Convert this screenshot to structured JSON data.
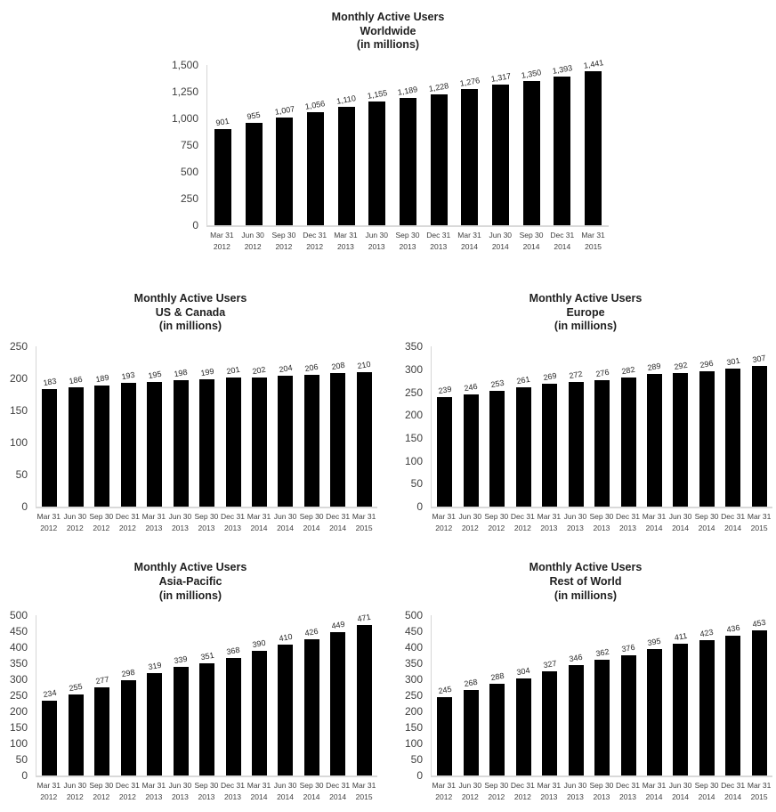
{
  "page": {
    "background": "#ffffff",
    "bar_color": "#000000",
    "axis_line_color": "#d9d9d9",
    "text_color": "#404040"
  },
  "chart_data": [
    {
      "type": "bar",
      "title": "Monthly Active Users Worldwide (in millions)",
      "title_lines": [
        "Monthly Active Users",
        "Worldwide",
        "(in millions)"
      ],
      "xlabel": "",
      "ylabel": "",
      "ylim": [
        0,
        1500
      ],
      "grid": false,
      "legend": "none",
      "y_tick_labels": [
        "0",
        "250",
        "500",
        "750",
        "1,000",
        "1,250",
        "1,500"
      ],
      "categories": [
        [
          "Mar 31",
          "2012"
        ],
        [
          "Jun 30",
          "2012"
        ],
        [
          "Sep 30",
          "2012"
        ],
        [
          "Dec 31",
          "2012"
        ],
        [
          "Mar 31",
          "2013"
        ],
        [
          "Jun 30",
          "2013"
        ],
        [
          "Sep 30",
          "2013"
        ],
        [
          "Dec 31",
          "2013"
        ],
        [
          "Mar 31",
          "2014"
        ],
        [
          "Jun 30",
          "2014"
        ],
        [
          "Sep 30",
          "2014"
        ],
        [
          "Dec 31",
          "2014"
        ],
        [
          "Mar 31",
          "2015"
        ]
      ],
      "values": [
        901,
        955,
        1007,
        1056,
        1110,
        1155,
        1189,
        1228,
        1276,
        1317,
        1350,
        1393,
        1441
      ],
      "value_labels": [
        "901",
        "955",
        "1,007",
        "1,056",
        "1,110",
        "1,155",
        "1,189",
        "1,228",
        "1,276",
        "1,317",
        "1,350",
        "1,393",
        "1,441"
      ]
    },
    {
      "type": "bar",
      "title": "Monthly Active Users US & Canada (in millions)",
      "title_lines": [
        "Monthly Active Users",
        "US & Canada",
        "(in millions)"
      ],
      "xlabel": "",
      "ylabel": "",
      "ylim": [
        0,
        250
      ],
      "grid": false,
      "legend": "none",
      "y_tick_labels": [
        "0",
        "50",
        "100",
        "150",
        "200",
        "250"
      ],
      "categories": [
        [
          "Mar 31",
          "2012"
        ],
        [
          "Jun 30",
          "2012"
        ],
        [
          "Sep 30",
          "2012"
        ],
        [
          "Dec 31",
          "2012"
        ],
        [
          "Mar 31",
          "2013"
        ],
        [
          "Jun 30",
          "2013"
        ],
        [
          "Sep 30",
          "2013"
        ],
        [
          "Dec 31",
          "2013"
        ],
        [
          "Mar 31",
          "2014"
        ],
        [
          "Jun 30",
          "2014"
        ],
        [
          "Sep 30",
          "2014"
        ],
        [
          "Dec 31",
          "2014"
        ],
        [
          "Mar 31",
          "2015"
        ]
      ],
      "values": [
        183,
        186,
        189,
        193,
        195,
        198,
        199,
        201,
        202,
        204,
        206,
        208,
        210
      ],
      "value_labels": [
        "183",
        "186",
        "189",
        "193",
        "195",
        "198",
        "199",
        "201",
        "202",
        "204",
        "206",
        "208",
        "210"
      ]
    },
    {
      "type": "bar",
      "title": "Monthly Active Users Europe (in millions)",
      "title_lines": [
        "Monthly Active Users",
        "Europe",
        "(in millions)"
      ],
      "xlabel": "",
      "ylabel": "",
      "ylim": [
        0,
        350
      ],
      "grid": false,
      "legend": "none",
      "y_tick_labels": [
        "0",
        "50",
        "100",
        "150",
        "200",
        "250",
        "300",
        "350"
      ],
      "categories": [
        [
          "Mar 31",
          "2012"
        ],
        [
          "Jun 30",
          "2012"
        ],
        [
          "Sep 30",
          "2012"
        ],
        [
          "Dec 31",
          "2012"
        ],
        [
          "Mar 31",
          "2013"
        ],
        [
          "Jun 30",
          "2013"
        ],
        [
          "Sep 30",
          "2013"
        ],
        [
          "Dec 31",
          "2013"
        ],
        [
          "Mar 31",
          "2014"
        ],
        [
          "Jun 30",
          "2014"
        ],
        [
          "Sep 30",
          "2014"
        ],
        [
          "Dec 31",
          "2014"
        ],
        [
          "Mar 31",
          "2015"
        ]
      ],
      "values": [
        239,
        246,
        253,
        261,
        269,
        272,
        276,
        282,
        289,
        292,
        296,
        301,
        307
      ],
      "value_labels": [
        "239",
        "246",
        "253",
        "261",
        "269",
        "272",
        "276",
        "282",
        "289",
        "292",
        "296",
        "301",
        "307"
      ]
    },
    {
      "type": "bar",
      "title": "Monthly Active Users Asia-Pacific (in millions)",
      "title_lines": [
        "Monthly Active Users",
        "Asia-Pacific",
        "(in millions)"
      ],
      "xlabel": "",
      "ylabel": "",
      "ylim": [
        0,
        500
      ],
      "grid": false,
      "legend": "none",
      "y_tick_labels": [
        "0",
        "50",
        "100",
        "150",
        "200",
        "250",
        "300",
        "350",
        "400",
        "450",
        "500"
      ],
      "categories": [
        [
          "Mar 31",
          "2012"
        ],
        [
          "Jun 30",
          "2012"
        ],
        [
          "Sep 30",
          "2012"
        ],
        [
          "Dec 31",
          "2012"
        ],
        [
          "Mar 31",
          "2013"
        ],
        [
          "Jun 30",
          "2013"
        ],
        [
          "Sep 30",
          "2013"
        ],
        [
          "Dec 31",
          "2013"
        ],
        [
          "Mar 31",
          "2014"
        ],
        [
          "Jun 30",
          "2014"
        ],
        [
          "Sep 30",
          "2014"
        ],
        [
          "Dec 31",
          "2014"
        ],
        [
          "Mar 31",
          "2015"
        ]
      ],
      "values": [
        234,
        255,
        277,
        298,
        319,
        339,
        351,
        368,
        390,
        410,
        426,
        449,
        471
      ],
      "value_labels": [
        "234",
        "255",
        "277",
        "298",
        "319",
        "339",
        "351",
        "368",
        "390",
        "410",
        "426",
        "449",
        "471"
      ]
    },
    {
      "type": "bar",
      "title": "Monthly Active Users Rest of World (in millions)",
      "title_lines": [
        "Monthly Active Users",
        "Rest of World",
        "(in millions)"
      ],
      "xlabel": "",
      "ylabel": "",
      "ylim": [
        0,
        500
      ],
      "grid": false,
      "legend": "none",
      "y_tick_labels": [
        "0",
        "50",
        "100",
        "150",
        "200",
        "250",
        "300",
        "350",
        "400",
        "450",
        "500"
      ],
      "categories": [
        [
          "Mar 31",
          "2012"
        ],
        [
          "Jun 30",
          "2012"
        ],
        [
          "Sep 30",
          "2012"
        ],
        [
          "Dec 31",
          "2012"
        ],
        [
          "Mar 31",
          "2013"
        ],
        [
          "Jun 30",
          "2013"
        ],
        [
          "Sep 30",
          "2013"
        ],
        [
          "Dec 31",
          "2013"
        ],
        [
          "Mar 31",
          "2014"
        ],
        [
          "Jun 30",
          "2014"
        ],
        [
          "Sep 30",
          "2014"
        ],
        [
          "Dec 31",
          "2014"
        ],
        [
          "Mar 31",
          "2015"
        ]
      ],
      "values": [
        245,
        268,
        288,
        304,
        327,
        346,
        362,
        376,
        395,
        411,
        423,
        436,
        453
      ],
      "value_labels": [
        "245",
        "268",
        "288",
        "304",
        "327",
        "346",
        "362",
        "376",
        "395",
        "411",
        "423",
        "436",
        "453"
      ]
    }
  ]
}
